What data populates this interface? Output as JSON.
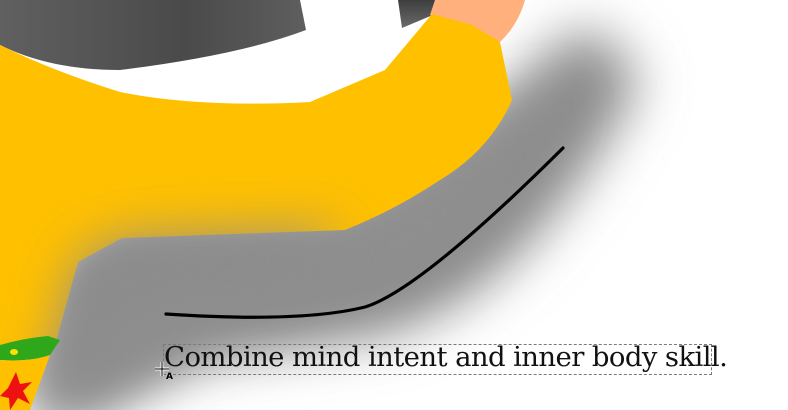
{
  "canvas": {
    "text_object": {
      "content": "Combine mind intent and inner body skill."
    },
    "cursor": {
      "tool_letter": "A",
      "icon": "text-tool-cursor-icon"
    },
    "colors": {
      "robe": "#FFC000",
      "skin": "#FFB07C",
      "hair": "#555555",
      "stroke": "#000000",
      "green_trim": "#2EA81A",
      "red_flower": "#EE1111",
      "shadow": "#8A8A8A",
      "background": "#FFFFFF"
    }
  }
}
